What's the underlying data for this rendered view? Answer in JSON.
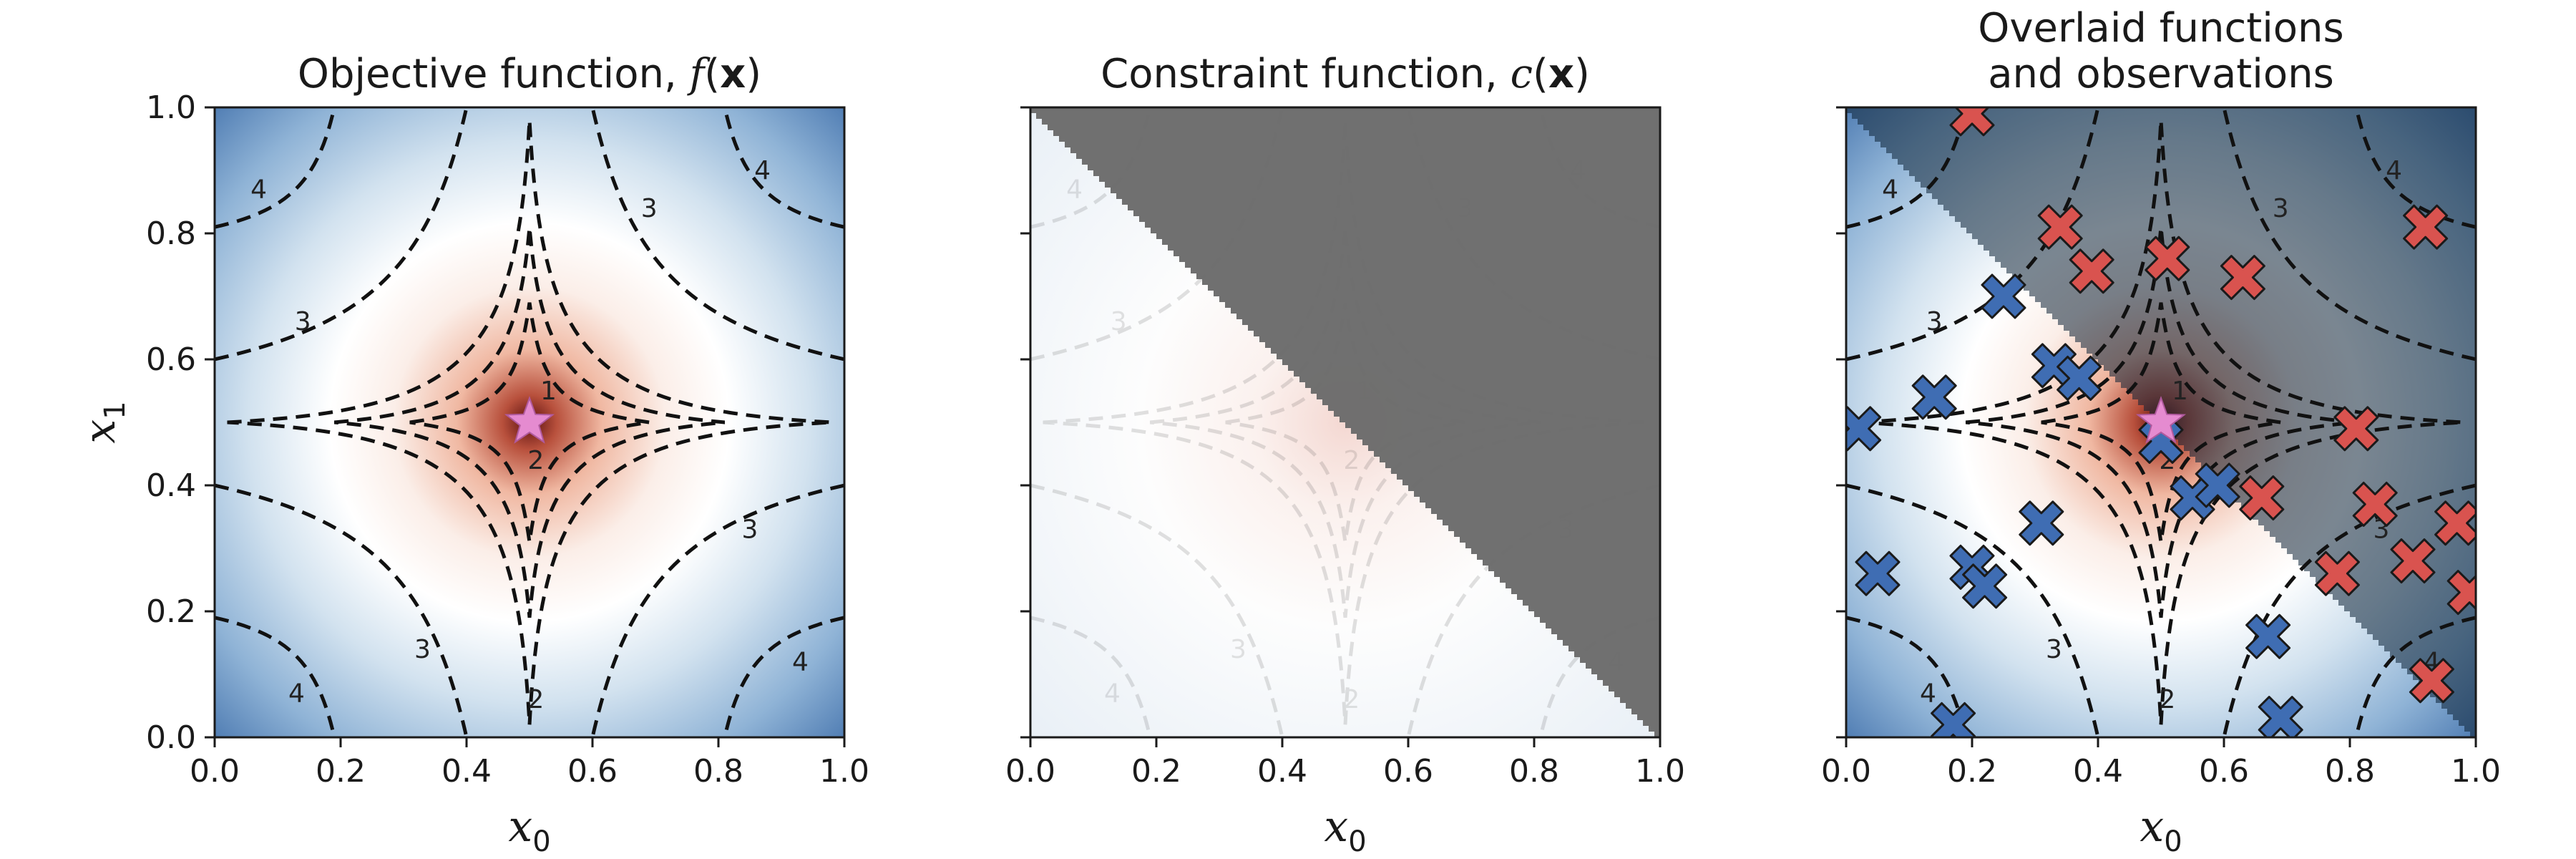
{
  "chart_data": [
    {
      "type": "heatmap",
      "title_text": "Objective function, ",
      "title_math": "f(x)",
      "xlabel": "x0",
      "ylabel": "x1",
      "xlim": [
        0.0,
        1.0
      ],
      "ylim": [
        0.0,
        1.0
      ],
      "xticks": [
        "0.0",
        "0.2",
        "0.4",
        "0.6",
        "0.8",
        "1.0"
      ],
      "yticks": [
        "0.0",
        "0.2",
        "0.4",
        "0.6",
        "0.8",
        "1.0"
      ],
      "contour_levels": [
        1,
        2,
        3,
        4
      ],
      "contour_labels": [
        "1",
        "2",
        "3",
        "4"
      ],
      "optimum": {
        "x0": 0.5,
        "x1": 0.5
      },
      "colormap": [
        "#4a78b0",
        "#ffffff",
        "#c8603e",
        "#5a0f0f"
      ]
    },
    {
      "type": "heatmap",
      "title_text": "Constraint function, ",
      "title_math": "c(x)",
      "xlabel": "x0",
      "xlim": [
        0.0,
        1.0
      ],
      "ylim": [
        0.0,
        1.0
      ],
      "xticks": [
        "0.0",
        "0.2",
        "0.4",
        "0.6",
        "0.8",
        "1.0"
      ],
      "infeasible_region": "x0 + x1 > 1",
      "infeasible_color": "#6b6b6b"
    },
    {
      "type": "scatter",
      "title_line1": "Overlaid functions",
      "title_line2": "and observations",
      "xlabel": "x0",
      "xlim": [
        0.0,
        1.0
      ],
      "ylim": [
        0.0,
        1.0
      ],
      "xticks": [
        "0.0",
        "0.2",
        "0.4",
        "0.6",
        "0.8",
        "1.0"
      ],
      "series": [
        {
          "color": "#3f6db3",
          "points": [
            [
              0.02,
              0.49
            ],
            [
              0.05,
              0.26
            ],
            [
              0.14,
              0.54
            ],
            [
              0.2,
              0.27
            ],
            [
              0.22,
              0.24
            ],
            [
              0.25,
              0.7
            ],
            [
              0.31,
              0.34
            ],
            [
              0.33,
              0.59
            ],
            [
              0.37,
              0.57
            ],
            [
              0.5,
              0.47
            ],
            [
              0.55,
              0.38
            ],
            [
              0.59,
              0.4
            ],
            [
              0.67,
              0.16
            ],
            [
              0.69,
              0.03
            ],
            [
              0.17,
              0.02
            ]
          ]
        },
        {
          "color": "#d9534f",
          "points": [
            [
              0.2,
              0.99
            ],
            [
              0.34,
              0.81
            ],
            [
              0.39,
              0.74
            ],
            [
              0.51,
              0.76
            ],
            [
              0.63,
              0.73
            ],
            [
              0.92,
              0.81
            ],
            [
              0.81,
              0.49
            ],
            [
              0.66,
              0.38
            ],
            [
              0.78,
              0.26
            ],
            [
              0.84,
              0.37
            ],
            [
              0.9,
              0.28
            ],
            [
              0.97,
              0.34
            ],
            [
              0.99,
              0.23
            ],
            [
              0.93,
              0.09
            ]
          ]
        }
      ],
      "optimum": {
        "x0": 0.5,
        "x1": 0.5
      },
      "star_color": "#e58bd0"
    }
  ]
}
